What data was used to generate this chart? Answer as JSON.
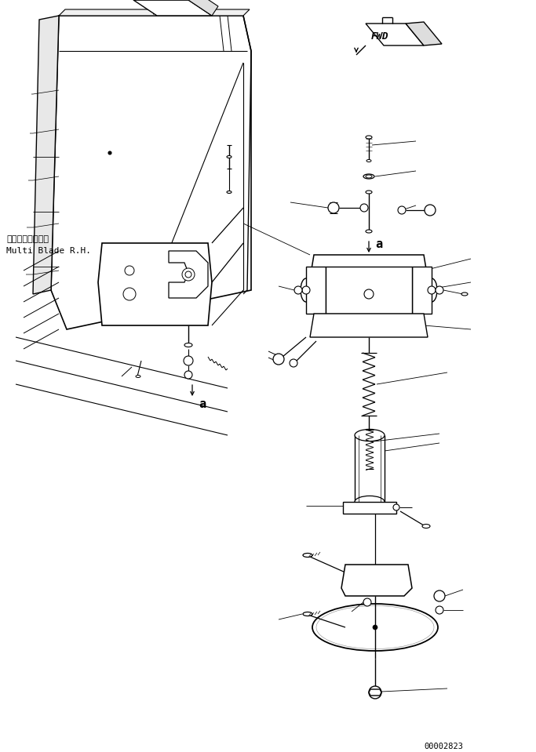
{
  "background_color": "#ffffff",
  "line_color": "#000000",
  "fig_width": 6.83,
  "fig_height": 9.59,
  "dpi": 100,
  "page_number": "00002823",
  "fwd_label": "FWD",
  "label_japanese": "マルチブレードも",
  "label_english": "Multi Blade R.H.",
  "label_a": "a"
}
